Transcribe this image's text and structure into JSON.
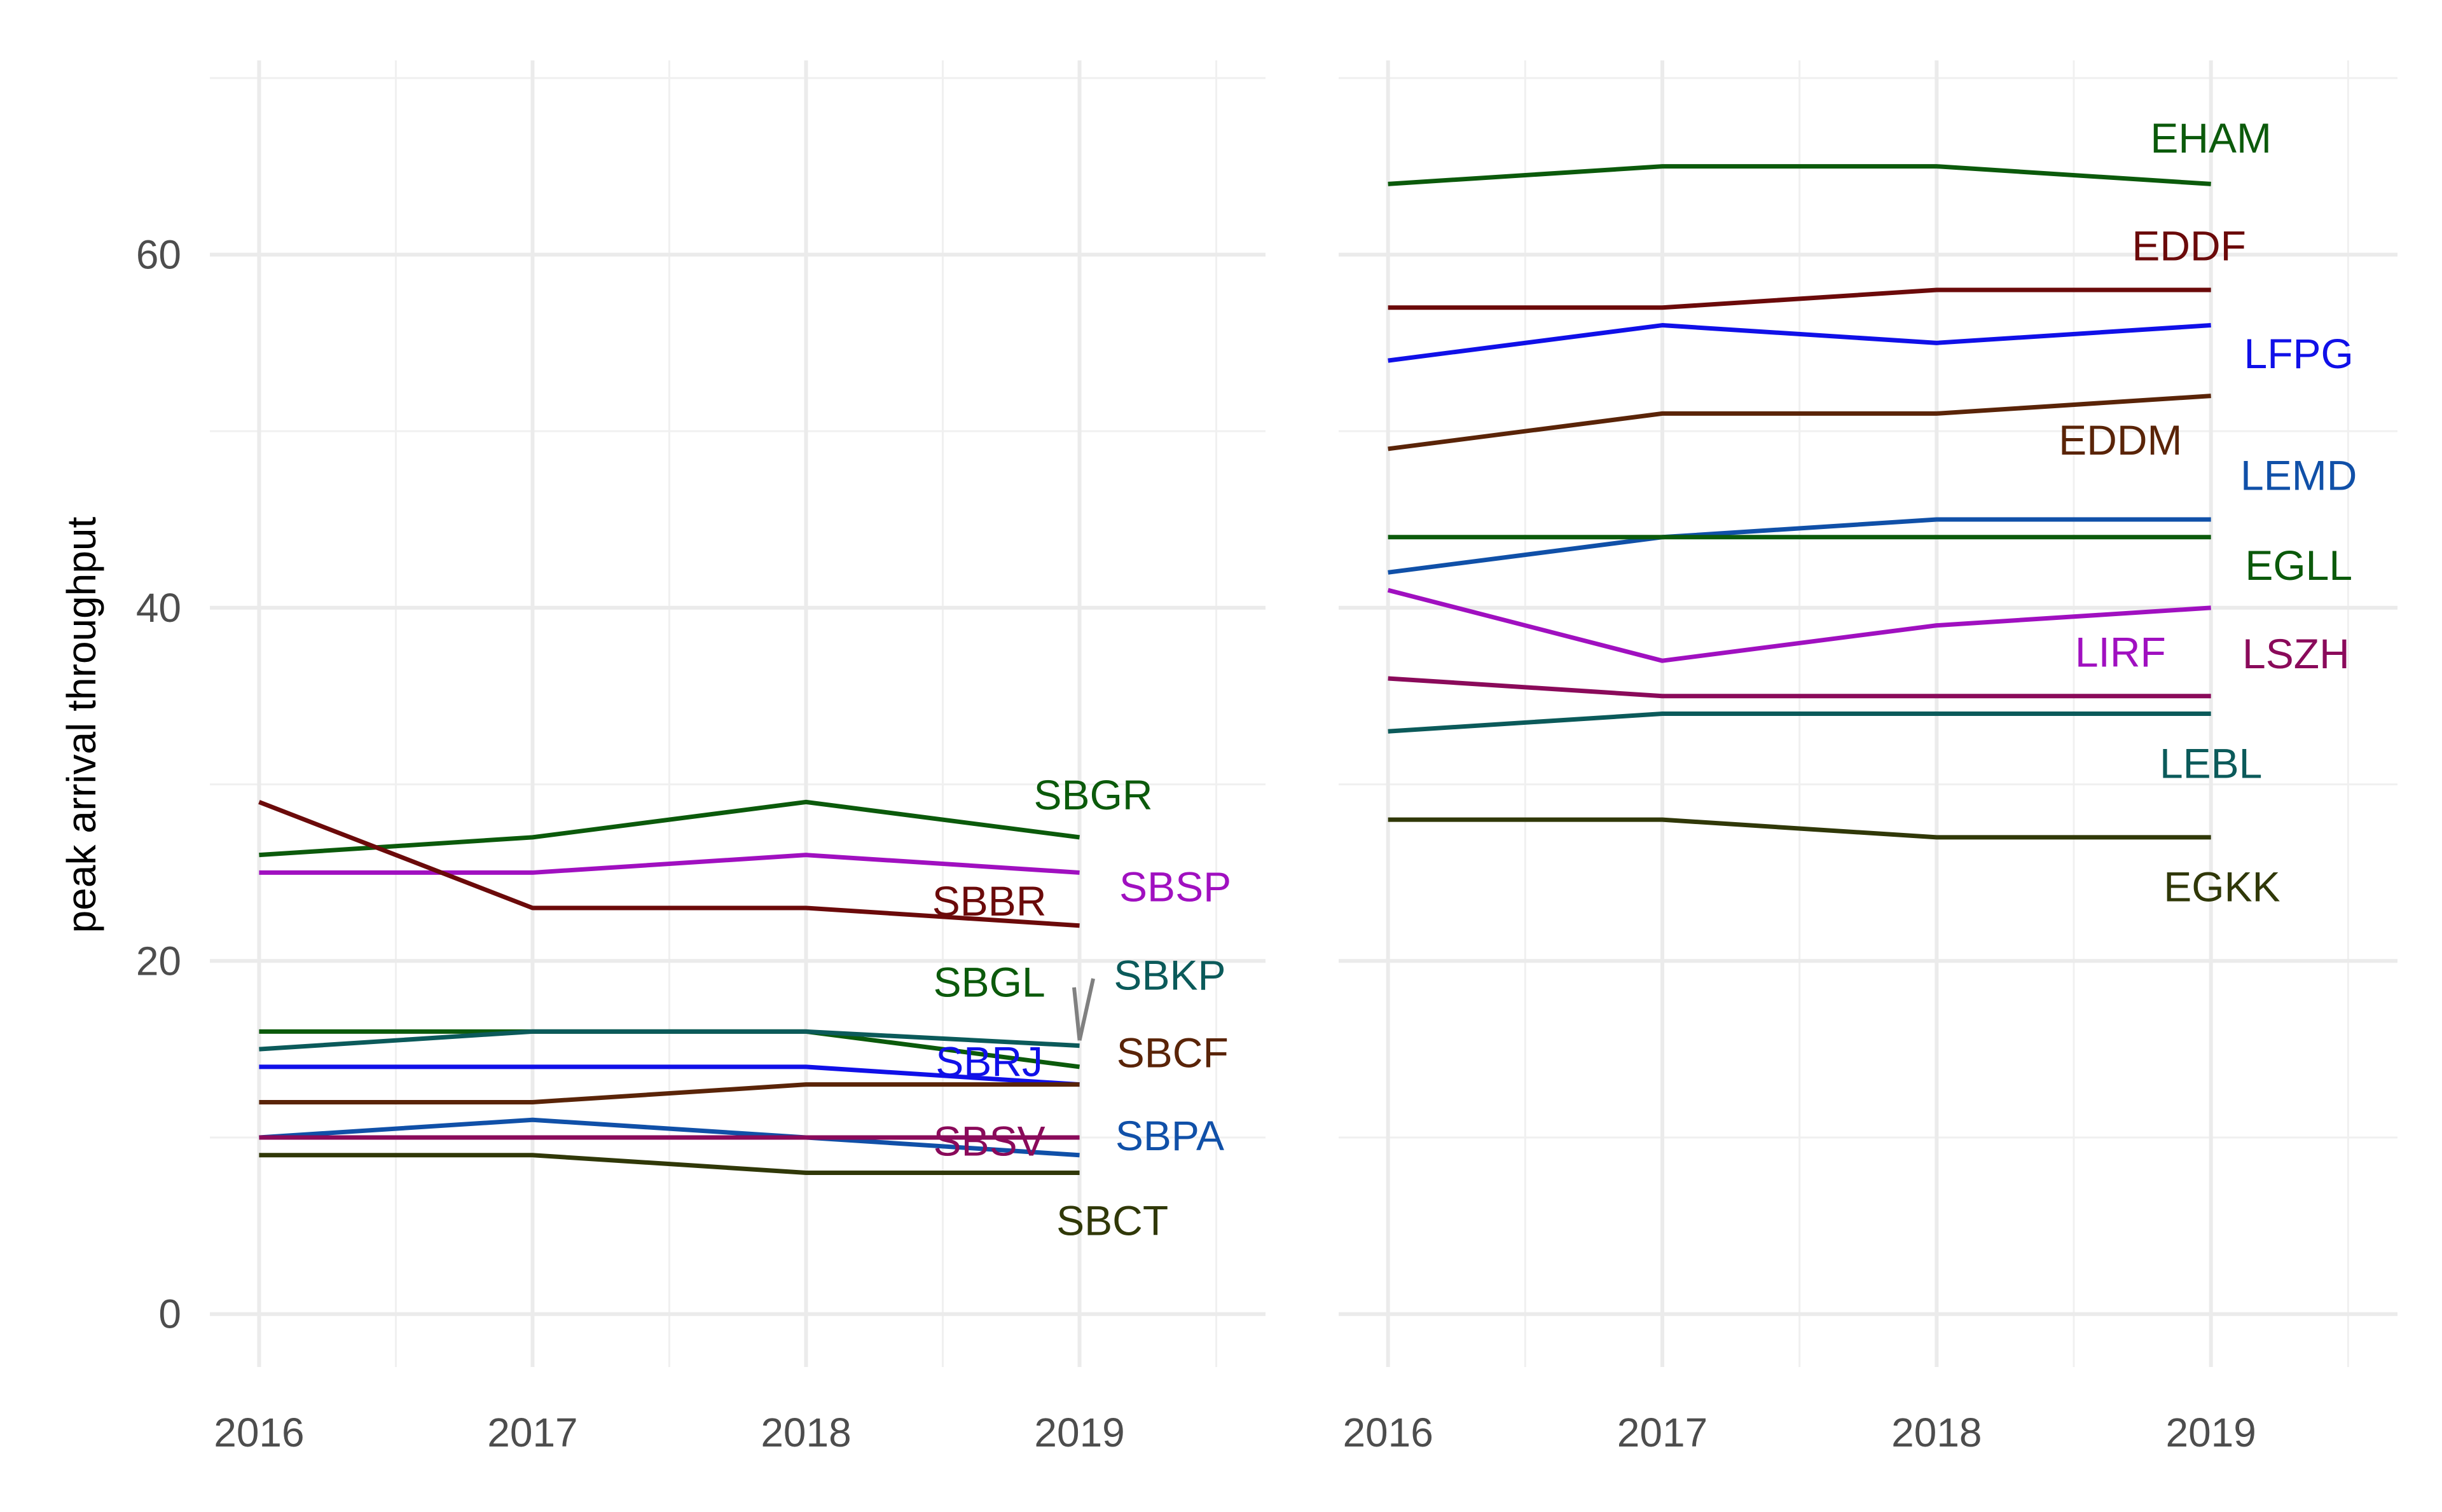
{
  "chart_data": {
    "type": "line",
    "ylabel": "peak arrival throughput",
    "xlabel": "",
    "ylim": [
      -3,
      71
    ],
    "y_ticks": [
      0,
      20,
      40,
      60
    ],
    "y_tick_labels": [
      "0",
      "20",
      "40",
      "60"
    ],
    "x_ticks": [
      2016,
      2017,
      2018,
      2019
    ],
    "x_tick_labels": [
      "2016",
      "2017",
      "2018",
      "2019"
    ],
    "xlim": [
      2015.82,
      2019.68
    ],
    "grid": true,
    "legend": "none (direct labels)",
    "panels": [
      {
        "x": [
          2016,
          2017,
          2018,
          2019
        ],
        "series": [
          {
            "name": "SBGR",
            "color": "#0b5a0b",
            "values": [
              26,
              27,
              29,
              27
            ]
          },
          {
            "name": "SBSP",
            "color": "#a010c0",
            "values": [
              25,
              25,
              26,
              25
            ]
          },
          {
            "name": "SBBR",
            "color": "#6b0a0a",
            "values": [
              29,
              23,
              23,
              22
            ]
          },
          {
            "name": "SBGL",
            "color": "#0b5a0b",
            "values": [
              16,
              16,
              16,
              14
            ]
          },
          {
            "name": "SBKP",
            "color": "#0b5a5a",
            "values": [
              15,
              16,
              16,
              15.2
            ]
          },
          {
            "name": "SBRJ",
            "color": "#1010e8",
            "values": [
              14,
              14,
              14,
              13
            ]
          },
          {
            "name": "SBCF",
            "color": "#5a2408",
            "values": [
              12,
              12,
              13,
              13
            ]
          },
          {
            "name": "SBPA",
            "color": "#1050a8",
            "values": [
              10,
              11,
              10,
              9
            ]
          },
          {
            "name": "SBSV",
            "color": "#8a0a5a",
            "values": [
              10,
              10,
              10,
              10
            ]
          },
          {
            "name": "SBCT",
            "color": "#303808",
            "values": [
              9,
              9,
              8,
              8
            ]
          }
        ],
        "labels": [
          {
            "text": "SBGR",
            "color": "#0b5a0b",
            "x": 2019.05,
            "y": 29.4
          },
          {
            "text": "SBSP",
            "color": "#a010c0",
            "x": 2019.35,
            "y": 24.2
          },
          {
            "text": "SBBR",
            "color": "#6b0a0a",
            "x": 2018.67,
            "y": 23.4
          },
          {
            "text": "SBGL",
            "color": "#0b5a0b",
            "x": 2018.67,
            "y": 18.8
          },
          {
            "text": "SBKP",
            "color": "#0b5a5a",
            "x": 2019.33,
            "y": 19.2
          },
          {
            "text": "SBRJ",
            "color": "#1010e8",
            "x": 2018.67,
            "y": 14.3
          },
          {
            "text": "SBCF",
            "color": "#5a2408",
            "x": 2019.34,
            "y": 14.8
          },
          {
            "text": "SBPA",
            "color": "#1050a8",
            "x": 2019.33,
            "y": 10.1
          },
          {
            "text": "SBSV",
            "color": "#8a0a5a",
            "x": 2018.67,
            "y": 9.8
          },
          {
            "text": "SBCT",
            "color": "#303808",
            "x": 2019.12,
            "y": 5.3
          }
        ],
        "connectors": [
          {
            "x1": 2019.0,
            "y1": 15.5,
            "x2": 2018.98,
            "y2": 18.5
          },
          {
            "x1": 2019.0,
            "y1": 15.5,
            "x2": 2019.05,
            "y2": 19.0
          }
        ]
      },
      {
        "x": [
          2016,
          2017,
          2018,
          2019
        ],
        "series": [
          {
            "name": "EHAM",
            "color": "#0b5a0b",
            "values": [
              64,
              65,
              65,
              64
            ]
          },
          {
            "name": "EDDF",
            "color": "#6b0a0a",
            "values": [
              57,
              57,
              58,
              58
            ]
          },
          {
            "name": "LFPG",
            "color": "#1010e8",
            "values": [
              54,
              56,
              55,
              56
            ]
          },
          {
            "name": "EDDM",
            "color": "#5a2408",
            "values": [
              49,
              51,
              51,
              52
            ]
          },
          {
            "name": "LEMD",
            "color": "#1050a8",
            "values": [
              42,
              44,
              45,
              45
            ]
          },
          {
            "name": "EGLL",
            "color": "#0b5a0b",
            "values": [
              44,
              44,
              44,
              44
            ]
          },
          {
            "name": "LIRF",
            "color": "#a010c0",
            "values": [
              41,
              37,
              39,
              40
            ]
          },
          {
            "name": "LSZH",
            "color": "#8a0a5a",
            "values": [
              36,
              35,
              35,
              35
            ]
          },
          {
            "name": "LEBL",
            "color": "#0b5a5a",
            "values": [
              33,
              34,
              34,
              34
            ]
          },
          {
            "name": "EGKK",
            "color": "#303808",
            "values": [
              28,
              28,
              27,
              27
            ]
          }
        ],
        "labels": [
          {
            "text": "EHAM",
            "color": "#0b5a0b",
            "x": 2019.0,
            "y": 66.6
          },
          {
            "text": "EDDF",
            "color": "#6b0a0a",
            "x": 2018.92,
            "y": 60.5
          },
          {
            "text": "LFPG",
            "color": "#1010e8",
            "x": 2019.32,
            "y": 54.4
          },
          {
            "text": "EDDM",
            "color": "#5a2408",
            "x": 2018.67,
            "y": 49.5
          },
          {
            "text": "LEMD",
            "color": "#1050a8",
            "x": 2019.32,
            "y": 47.5
          },
          {
            "text": "EGLL",
            "color": "#0b5a0b",
            "x": 2019.32,
            "y": 42.4
          },
          {
            "text": "LIRF",
            "color": "#a010c0",
            "x": 2018.67,
            "y": 37.5
          },
          {
            "text": "LSZH",
            "color": "#8a0a5a",
            "x": 2019.31,
            "y": 37.4
          },
          {
            "text": "LEBL",
            "color": "#0b5a5a",
            "x": 2019.0,
            "y": 31.2
          },
          {
            "text": "EGKK",
            "color": "#303808",
            "x": 2019.04,
            "y": 24.2
          }
        ],
        "connectors": []
      }
    ]
  }
}
